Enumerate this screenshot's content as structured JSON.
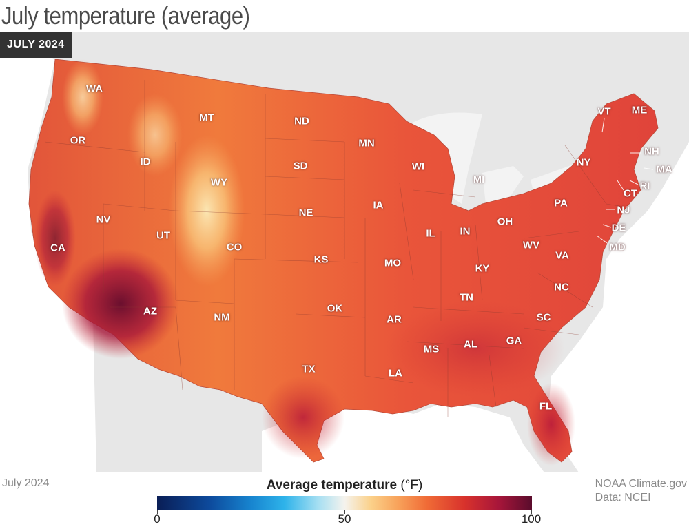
{
  "title": "July temperature (average)",
  "period_badge": "JULY 2024",
  "footer": {
    "period": "July 2024",
    "source_line1": "NOAA Climate.gov",
    "source_line2": "Data: NCEI"
  },
  "legend": {
    "title": "Average temperature",
    "unit": "(°F)",
    "min": "0",
    "mid": "50",
    "max": "100"
  },
  "colors": {
    "background_land": "#e7e7e7",
    "ocean": "#ffffff",
    "cool": "#0a1e56",
    "neutral": "#f5f3ee",
    "warm": "#f06b36",
    "hot": "#5a0c2c"
  },
  "states": [
    "WA",
    "MT",
    "ND",
    "OR",
    "ID",
    "MN",
    "WY",
    "SD",
    "WI",
    "MI",
    "NV",
    "NE",
    "IA",
    "UT",
    "CA",
    "CO",
    "KS",
    "IL",
    "IN",
    "OH",
    "MO",
    "KY",
    "WV",
    "VA",
    "PA",
    "NY",
    "VT",
    "ME",
    "NH",
    "MA",
    "RI",
    "CT",
    "NJ",
    "DE",
    "MD",
    "AZ",
    "NM",
    "OK",
    "TN",
    "NC",
    "AR",
    "SC",
    "GA",
    "AL",
    "MS",
    "TX",
    "LA",
    "FL"
  ]
}
